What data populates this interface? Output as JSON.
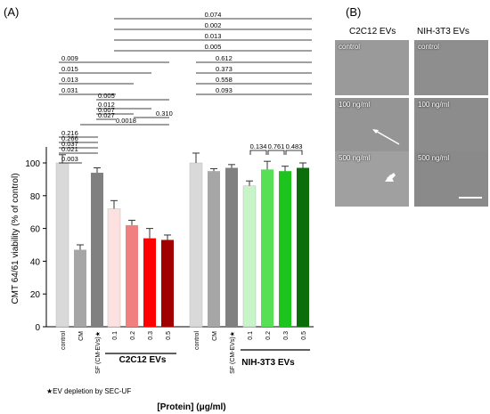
{
  "panel_a_label": "(A)",
  "panel_b_label": "(B)",
  "chart_data": {
    "type": "bar",
    "ylabel": "CMT 64/61 viability (% of control)",
    "xlabel": "[Protein] (μg/ml)",
    "ylim": [
      0,
      100
    ],
    "yticks": [
      "0",
      "20",
      "40",
      "60",
      "80",
      "100"
    ],
    "categories": [
      "control",
      "CM",
      "SF (CM-EVs)",
      "0.1",
      "0.2",
      "0.3",
      "0.5",
      "control",
      "CM",
      "SF (CM-EVs)",
      "0.1",
      "0.2",
      "0.3",
      "0.5"
    ],
    "values": [
      100,
      47,
      94,
      72,
      62,
      54,
      53,
      100,
      95,
      97,
      86,
      96,
      95,
      97
    ],
    "errors": [
      5,
      3,
      3,
      5,
      3,
      6,
      3,
      6,
      1.5,
      2,
      3,
      5,
      3,
      3
    ],
    "bar_colors": [
      "#d9d9d9",
      "#a6a6a6",
      "#808080",
      "#fde0e0",
      "#f08080",
      "#ff0000",
      "#a00000",
      "#d9d9d9",
      "#a6a6a6",
      "#808080",
      "#c8f5c8",
      "#55e055",
      "#1ec41e",
      "#0b6e0b"
    ],
    "star_marker": "★",
    "group_labels": [
      "C2C12 EVs",
      "NIH-3T3 EVs"
    ],
    "footnote": "★EV depletion by SEC-UF",
    "pvalues_c2c12": [
      "0.009",
      "0.015",
      "0.013",
      "0.031",
      "0.005",
      "0.012",
      "0.007",
      "0.027",
      "0.0018",
      "0.310",
      "0.216",
      "0.266",
      "0.037",
      "0.021",
      "0.003"
    ],
    "pvalues_top": [
      "0.074",
      "0.002",
      "0.013",
      "0.005"
    ],
    "pvalues_nih": [
      "0.612",
      "0.373",
      "0.558",
      "0.093"
    ],
    "pvalues_adjacent": [
      "0.134",
      "0.761",
      "0.483"
    ]
  },
  "micrographs": {
    "col_headers": [
      "C2C12 EVs",
      "NIH-3T3 EVs"
    ],
    "labels": [
      "control",
      "control",
      "100 ng/ml",
      "100 ng/ml",
      "500 ng/ml",
      "500 ng/ml"
    ]
  }
}
